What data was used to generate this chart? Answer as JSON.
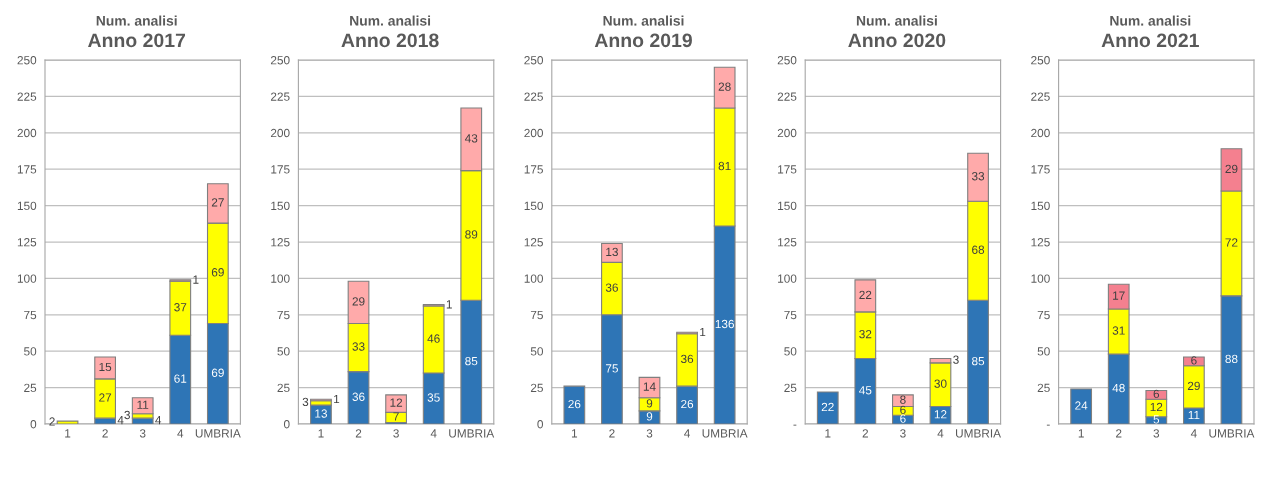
{
  "chart_data": [
    {
      "type": "bar",
      "stacked": true,
      "subtitle": "Num. analisi",
      "title": "Anno 2017",
      "categories": [
        "1",
        "2",
        "3",
        "4",
        "UMBRIA"
      ],
      "ylim": [
        0,
        250
      ],
      "yticks": [
        0,
        25,
        50,
        75,
        100,
        125,
        150,
        175,
        200,
        225,
        250
      ],
      "grid": "y",
      "series": [
        {
          "color": "#2e75b6",
          "values": [
            0,
            4,
            4,
            61,
            69
          ],
          "value_labels": [
            null,
            "4",
            "4",
            "61",
            "69"
          ]
        },
        {
          "color": "#ffff00",
          "values": [
            2,
            27,
            3,
            37,
            69
          ],
          "value_labels": [
            "2",
            "27",
            "3",
            "37",
            "69"
          ]
        },
        {
          "color": "#ffaaaa",
          "values": [
            0,
            15,
            11,
            1,
            27
          ],
          "value_labels": [
            null,
            "15",
            "11",
            "1",
            "27"
          ]
        }
      ]
    },
    {
      "type": "bar",
      "stacked": true,
      "subtitle": "Num. analisi",
      "title": "Anno 2018",
      "categories": [
        "1",
        "2",
        "3",
        "4",
        "UMBRIA"
      ],
      "ylim": [
        0,
        250
      ],
      "yticks": [
        0,
        25,
        50,
        75,
        100,
        125,
        150,
        175,
        200,
        225,
        250
      ],
      "grid": "y",
      "series": [
        {
          "color": "#2e75b6",
          "values": [
            13,
            36,
            1,
            35,
            85
          ],
          "value_labels": [
            "13",
            "36",
            null,
            "35",
            "85"
          ]
        },
        {
          "color": "#ffff00",
          "values": [
            3,
            33,
            7,
            46,
            89
          ],
          "value_labels": [
            "3",
            "33",
            "7",
            "46",
            "89"
          ]
        },
        {
          "color": "#ffaaaa",
          "values": [
            1,
            29,
            12,
            1,
            43
          ],
          "value_labels": [
            "1",
            "29",
            "12",
            "1",
            "43"
          ]
        }
      ]
    },
    {
      "type": "bar",
      "stacked": true,
      "subtitle": "Num. analisi",
      "title": "Anno 2019",
      "categories": [
        "1",
        "2",
        "3",
        "4",
        "UMBRIA"
      ],
      "ylim": [
        0,
        250
      ],
      "yticks": [
        0,
        25,
        50,
        75,
        100,
        125,
        150,
        175,
        200,
        225,
        250
      ],
      "grid": "y",
      "series": [
        {
          "color": "#2e75b6",
          "values": [
            26,
            75,
            9,
            26,
            136
          ],
          "value_labels": [
            "26",
            "75",
            "9",
            "26",
            "136"
          ]
        },
        {
          "color": "#ffff00",
          "values": [
            0,
            36,
            9,
            36,
            81
          ],
          "value_labels": [
            null,
            "36",
            "9",
            "36",
            "81"
          ]
        },
        {
          "color": "#ffaaaa",
          "values": [
            0,
            13,
            14,
            1,
            28
          ],
          "value_labels": [
            null,
            "13",
            "14",
            "1",
            "28"
          ]
        }
      ]
    },
    {
      "type": "bar",
      "stacked": true,
      "subtitle": "Num. analisi",
      "title": "Anno 2020",
      "categories": [
        "1",
        "2",
        "3",
        "4",
        "UMBRIA"
      ],
      "ylim": [
        0,
        250
      ],
      "yticks": [
        {
          "value": 0,
          "label": "-"
        },
        25,
        50,
        75,
        100,
        125,
        150,
        175,
        200,
        225,
        250
      ],
      "grid": "y",
      "series": [
        {
          "color": "#2e75b6",
          "values": [
            22,
            45,
            6,
            12,
            85
          ],
          "value_labels": [
            "22",
            "45",
            "6",
            "12",
            "85"
          ]
        },
        {
          "color": "#ffff00",
          "values": [
            0,
            32,
            6,
            30,
            68
          ],
          "value_labels": [
            null,
            "32",
            "6",
            "30",
            "68"
          ]
        },
        {
          "color": "#ffaaaa",
          "values": [
            0,
            22,
            8,
            3,
            33
          ],
          "value_labels": [
            null,
            "22",
            "8",
            "3",
            "33"
          ]
        }
      ]
    },
    {
      "type": "bar",
      "stacked": true,
      "subtitle": "Num. analisi",
      "title": "Anno 2021",
      "categories": [
        "1",
        "2",
        "3",
        "4",
        "UMBRIA"
      ],
      "ylim": [
        0,
        250
      ],
      "yticks": [
        {
          "value": 0,
          "label": "-"
        },
        25,
        50,
        75,
        100,
        125,
        150,
        175,
        200,
        225,
        250
      ],
      "grid": "y",
      "series": [
        {
          "color": "#2e75b6",
          "values": [
            24,
            48,
            5,
            11,
            88
          ],
          "value_labels": [
            "24",
            "48",
            "5",
            "11",
            "88"
          ]
        },
        {
          "color": "#ffff00",
          "values": [
            0,
            31,
            12,
            29,
            72
          ],
          "value_labels": [
            null,
            "31",
            "12",
            "29",
            "72"
          ]
        },
        {
          "color": "#f4808f",
          "values": [
            0,
            17,
            6,
            6,
            29
          ],
          "value_labels": [
            null,
            "17",
            "6",
            "6",
            "29"
          ]
        }
      ]
    }
  ]
}
